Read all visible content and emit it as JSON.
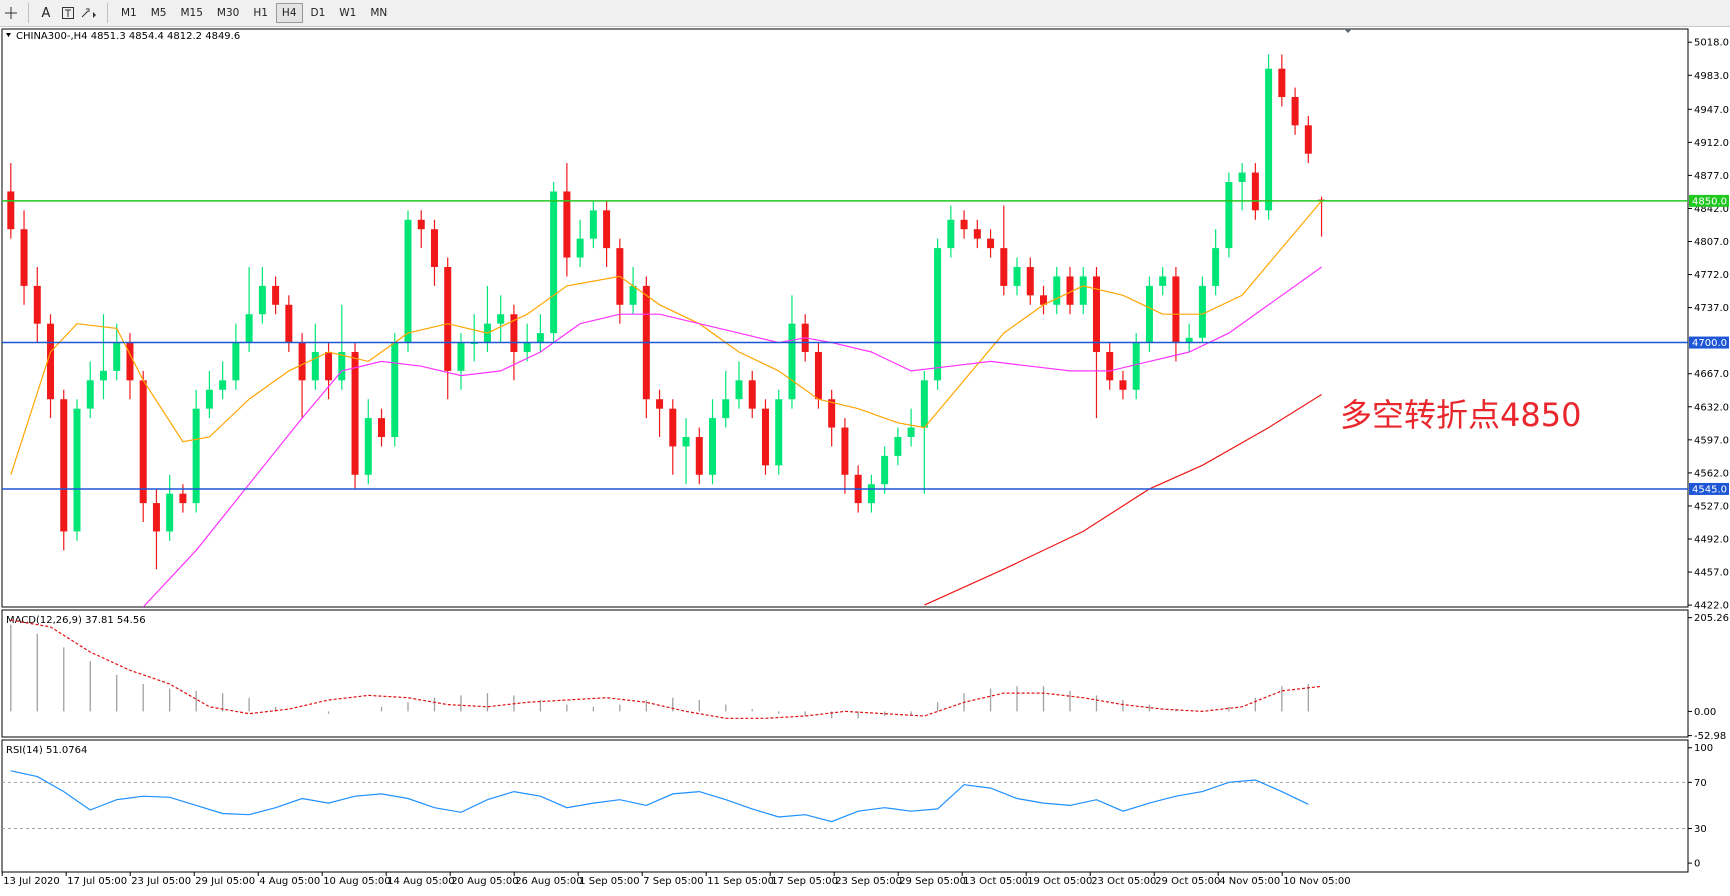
{
  "toolbar": {
    "text_tool": "A",
    "timeframes": [
      "M1",
      "M5",
      "M15",
      "M30",
      "H1",
      "H4",
      "D1",
      "W1",
      "MN"
    ],
    "active_timeframe": "H4"
  },
  "chart_data": [
    {
      "type": "candlestick",
      "title": "CHINA300-,H4  4851.3 4854.4 4812.2 4849.6",
      "ylim": [
        4420,
        5032
      ],
      "yticks": [
        {
          "value": 5018,
          "label": "5018.0"
        },
        {
          "value": 4983,
          "label": "4983.0"
        },
        {
          "value": 4947,
          "label": "4947.0"
        },
        {
          "value": 4912,
          "label": "4912.0"
        },
        {
          "value": 4877,
          "label": "4877.0"
        },
        {
          "value": 4842,
          "label": "4842.0"
        },
        {
          "value": 4807,
          "label": "4807.0"
        },
        {
          "value": 4772,
          "label": "4772.0"
        },
        {
          "value": 4737,
          "label": "4737.0"
        },
        {
          "value": 4667,
          "label": "4667.0"
        },
        {
          "value": 4632,
          "label": "4632.0"
        },
        {
          "value": 4597,
          "label": "4597.0"
        },
        {
          "value": 4562,
          "label": "4562.0"
        },
        {
          "value": 4527,
          "label": "4527.0"
        },
        {
          "value": 4492,
          "label": "4492.0"
        },
        {
          "value": 4457,
          "label": "4457.0"
        },
        {
          "value": 4422,
          "label": "4422.0"
        }
      ],
      "x_labels": [
        "13 Jul 2020",
        "17 Jul 05:00",
        "23 Jul 05:00",
        "29 Jul 05:00",
        "4 Aug 05:00",
        "10 Aug 05:00",
        "14 Aug 05:00",
        "20 Aug 05:00",
        "26 Aug 05:00",
        "1 Sep 05:00",
        "7 Sep 05:00",
        "11 Sep 05:00",
        "17 Sep 05:00",
        "23 Sep 05:00",
        "29 Sep 05:00",
        "13 Oct 05:00",
        "19 Oct 05:00",
        "23 Oct 05:00",
        "29 Oct 05:00",
        "4 Nov 05:00",
        "10 Nov 05:00"
      ],
      "up_color": "#00e676",
      "down_color": "#f01818",
      "ohlc": [
        [
          4860,
          4890,
          4810,
          4820
        ],
        [
          4820,
          4840,
          4740,
          4760
        ],
        [
          4760,
          4780,
          4700,
          4720
        ],
        [
          4720,
          4730,
          4620,
          4640
        ],
        [
          4640,
          4650,
          4480,
          4500
        ],
        [
          4500,
          4640,
          4490,
          4630
        ],
        [
          4630,
          4680,
          4620,
          4660
        ],
        [
          4660,
          4730,
          4640,
          4670
        ],
        [
          4670,
          4720,
          4660,
          4700
        ],
        [
          4700,
          4710,
          4640,
          4660
        ],
        [
          4660,
          4670,
          4510,
          4530
        ],
        [
          4530,
          4545,
          4460,
          4500
        ],
        [
          4500,
          4560,
          4490,
          4540
        ],
        [
          4540,
          4550,
          4520,
          4530
        ],
        [
          4530,
          4650,
          4520,
          4630
        ],
        [
          4630,
          4670,
          4620,
          4650
        ],
        [
          4650,
          4680,
          4640,
          4660
        ],
        [
          4660,
          4720,
          4650,
          4700
        ],
        [
          4700,
          4780,
          4690,
          4730
        ],
        [
          4730,
          4780,
          4720,
          4760
        ],
        [
          4760,
          4770,
          4730,
          4740
        ],
        [
          4740,
          4750,
          4690,
          4700
        ],
        [
          4700,
          4710,
          4620,
          4660
        ],
        [
          4660,
          4720,
          4650,
          4690
        ],
        [
          4690,
          4700,
          4640,
          4660
        ],
        [
          4660,
          4740,
          4650,
          4690
        ],
        [
          4690,
          4700,
          4545,
          4560
        ],
        [
          4560,
          4640,
          4550,
          4620
        ],
        [
          4620,
          4630,
          4590,
          4600
        ],
        [
          4600,
          4710,
          4590,
          4700
        ],
        [
          4700,
          4840,
          4690,
          4830
        ],
        [
          4830,
          4840,
          4800,
          4820
        ],
        [
          4820,
          4830,
          4760,
          4780
        ],
        [
          4780,
          4790,
          4640,
          4670
        ],
        [
          4670,
          4710,
          4650,
          4700
        ],
        [
          4700,
          4730,
          4680,
          4700
        ],
        [
          4700,
          4760,
          4690,
          4720
        ],
        [
          4720,
          4750,
          4700,
          4730
        ],
        [
          4730,
          4740,
          4660,
          4690
        ],
        [
          4690,
          4720,
          4680,
          4700
        ],
        [
          4700,
          4730,
          4690,
          4710
        ],
        [
          4710,
          4870,
          4700,
          4860
        ],
        [
          4860,
          4890,
          4770,
          4790
        ],
        [
          4790,
          4830,
          4780,
          4810
        ],
        [
          4810,
          4850,
          4800,
          4840
        ],
        [
          4840,
          4850,
          4780,
          4800
        ],
        [
          4800,
          4810,
          4720,
          4740
        ],
        [
          4740,
          4780,
          4730,
          4760
        ],
        [
          4760,
          4770,
          4620,
          4640
        ],
        [
          4640,
          4650,
          4600,
          4630
        ],
        [
          4630,
          4640,
          4560,
          4590
        ],
        [
          4590,
          4620,
          4550,
          4600
        ],
        [
          4600,
          4610,
          4550,
          4560
        ],
        [
          4560,
          4640,
          4550,
          4620
        ],
        [
          4620,
          4670,
          4610,
          4640
        ],
        [
          4640,
          4680,
          4630,
          4660
        ],
        [
          4660,
          4670,
          4620,
          4630
        ],
        [
          4630,
          4640,
          4560,
          4570
        ],
        [
          4570,
          4650,
          4560,
          4640
        ],
        [
          4640,
          4750,
          4630,
          4720
        ],
        [
          4720,
          4730,
          4680,
          4690
        ],
        [
          4690,
          4700,
          4630,
          4640
        ],
        [
          4640,
          4650,
          4590,
          4610
        ],
        [
          4610,
          4620,
          4540,
          4560
        ],
        [
          4560,
          4570,
          4520,
          4530
        ],
        [
          4530,
          4560,
          4520,
          4550
        ],
        [
          4550,
          4590,
          4540,
          4580
        ],
        [
          4580,
          4610,
          4570,
          4600
        ],
        [
          4600,
          4630,
          4590,
          4610
        ],
        [
          4610,
          4670,
          4540,
          4660
        ],
        [
          4660,
          4810,
          4650,
          4800
        ],
        [
          4800,
          4845,
          4790,
          4830
        ],
        [
          4830,
          4840,
          4810,
          4820
        ],
        [
          4820,
          4830,
          4800,
          4810
        ],
        [
          4810,
          4820,
          4790,
          4800
        ],
        [
          4800,
          4845,
          4750,
          4760
        ],
        [
          4760,
          4790,
          4750,
          4780
        ],
        [
          4780,
          4790,
          4740,
          4750
        ],
        [
          4750,
          4760,
          4730,
          4740
        ],
        [
          4740,
          4780,
          4730,
          4770
        ],
        [
          4770,
          4780,
          4730,
          4740
        ],
        [
          4740,
          4780,
          4730,
          4770
        ],
        [
          4770,
          4780,
          4620,
          4690
        ],
        [
          4690,
          4700,
          4650,
          4660
        ],
        [
          4660,
          4670,
          4640,
          4650
        ],
        [
          4650,
          4710,
          4640,
          4700
        ],
        [
          4700,
          4770,
          4690,
          4760
        ],
        [
          4760,
          4780,
          4750,
          4770
        ],
        [
          4770,
          4780,
          4680,
          4700
        ],
        [
          4700,
          4720,
          4690,
          4705
        ],
        [
          4705,
          4770,
          4700,
          4760
        ],
        [
          4760,
          4820,
          4750,
          4800
        ],
        [
          4800,
          4880,
          4790,
          4870
        ],
        [
          4870,
          4890,
          4840,
          4880
        ],
        [
          4880,
          4890,
          4830,
          4840
        ],
        [
          4840,
          5005,
          4830,
          4990
        ],
        [
          4990,
          5005,
          4950,
          4960
        ],
        [
          4960,
          4970,
          4920,
          4930
        ],
        [
          4930,
          4940,
          4890,
          4900
        ],
        [
          4851.3,
          4854.4,
          4812.2,
          4849.6
        ]
      ],
      "series": [
        {
          "color": "#ffa500",
          "x": [
            0,
            3,
            5,
            8,
            10,
            13,
            15,
            18,
            21,
            24,
            27,
            30,
            33,
            36,
            39,
            42,
            46,
            49,
            52,
            55,
            58,
            61,
            64,
            67,
            69,
            72,
            75,
            78,
            81,
            84,
            87,
            90,
            93,
            96,
            99
          ],
          "values": [
            4560,
            4690,
            4720,
            4715,
            4660,
            4595,
            4600,
            4640,
            4670,
            4690,
            4680,
            4710,
            4720,
            4710,
            4730,
            4760,
            4770,
            4740,
            4720,
            4690,
            4670,
            4640,
            4630,
            4615,
            4610,
            4660,
            4710,
            4740,
            4760,
            4750,
            4730,
            4730,
            4750,
            4800,
            4850
          ]
        },
        {
          "color": "#ff33ff",
          "x": [
            10,
            14,
            18,
            22,
            25,
            28,
            31,
            34,
            37,
            40,
            43,
            46,
            49,
            52,
            55,
            58,
            60,
            62,
            65,
            68,
            71,
            74,
            77,
            80,
            83,
            86,
            89,
            92,
            95,
            99
          ],
          "values": [
            4420,
            4480,
            4550,
            4620,
            4670,
            4680,
            4675,
            4665,
            4670,
            4690,
            4720,
            4730,
            4730,
            4720,
            4710,
            4700,
            4705,
            4700,
            4690,
            4670,
            4675,
            4680,
            4675,
            4670,
            4670,
            4680,
            4690,
            4710,
            4740,
            4780
          ]
        },
        {
          "color": "#f01818",
          "x": [
            69,
            75,
            81,
            86,
            90,
            95,
            99
          ],
          "values": [
            4422,
            4460,
            4500,
            4545,
            4570,
            4610,
            4645
          ]
        }
      ],
      "levels": [
        {
          "value": 4850,
          "label": "4850.0",
          "color": "#22c822"
        },
        {
          "value": 4700,
          "label": "4700.0",
          "color": "#1e56d6"
        },
        {
          "value": 4545,
          "label": "4545.0",
          "color": "#1e56d6"
        }
      ],
      "annotation": {
        "text": "多空转折点4850",
        "color": "#e8262b"
      }
    },
    {
      "type": "macd",
      "title": "MACD(12,26,9) 37.81 54.56",
      "ylim": [
        -56,
        222
      ],
      "yticks": [
        205.26,
        {
          "value": 0,
          "label": "0.00"
        },
        -52.98
      ],
      "histogram": {
        "color": "#a0a0a0",
        "x": [
          0,
          2,
          4,
          6,
          8,
          10,
          12,
          14,
          16,
          18,
          20,
          22,
          24,
          26,
          28,
          30,
          32,
          34,
          36,
          38,
          40,
          42,
          44,
          46,
          48,
          50,
          52,
          54,
          56,
          58,
          60,
          62,
          64,
          66,
          68,
          70,
          72,
          74,
          76,
          78,
          80,
          82,
          84,
          86,
          88,
          90,
          92,
          94,
          96,
          98
        ],
        "values": [
          190,
          170,
          140,
          110,
          80,
          60,
          50,
          45,
          40,
          30,
          10,
          0,
          -5,
          0,
          10,
          20,
          30,
          35,
          40,
          35,
          25,
          15,
          10,
          15,
          25,
          30,
          25,
          15,
          5,
          -5,
          -10,
          -15,
          -15,
          -10,
          -8,
          20,
          40,
          50,
          55,
          55,
          45,
          35,
          25,
          15,
          5,
          0,
          10,
          30,
          55,
          60
        ]
      },
      "signal": {
        "color": "#e01010",
        "x": [
          0,
          3,
          6,
          9,
          12,
          15,
          18,
          21,
          24,
          27,
          30,
          33,
          36,
          39,
          42,
          45,
          48,
          51,
          54,
          57,
          60,
          63,
          66,
          69,
          72,
          75,
          78,
          81,
          84,
          87,
          90,
          93,
          96,
          99
        ],
        "values": [
          200,
          185,
          130,
          90,
          60,
          10,
          -5,
          5,
          25,
          35,
          30,
          15,
          10,
          20,
          25,
          30,
          20,
          0,
          -15,
          -15,
          -10,
          0,
          -5,
          -10,
          20,
          40,
          40,
          30,
          15,
          5,
          0,
          10,
          45,
          55
        ]
      }
    },
    {
      "type": "line",
      "title": "RSI(14) 51.0764",
      "ylim": [
        -7.7,
        106.7
      ],
      "yticks": [
        100,
        70,
        30,
        0
      ],
      "color": "#1e90ff",
      "x": [
        0,
        2,
        4,
        6,
        8,
        10,
        12,
        14,
        16,
        18,
        20,
        22,
        24,
        26,
        28,
        30,
        32,
        34,
        36,
        38,
        40,
        42,
        44,
        46,
        48,
        50,
        52,
        54,
        56,
        58,
        60,
        62,
        64,
        66,
        68,
        70,
        72,
        74,
        76,
        78,
        80,
        82,
        84,
        86,
        88,
        90,
        92,
        94,
        96,
        98
      ],
      "values": [
        80,
        75,
        62,
        46,
        55,
        58,
        57,
        50,
        43,
        42,
        48,
        56,
        52,
        58,
        60,
        56,
        48,
        44,
        55,
        62,
        58,
        48,
        52,
        55,
        50,
        60,
        62,
        55,
        47,
        40,
        42,
        36,
        45,
        48,
        45,
        47,
        68,
        65,
        56,
        52,
        50,
        55,
        45,
        52,
        58,
        62,
        70,
        72,
        62,
        51
      ]
    }
  ]
}
